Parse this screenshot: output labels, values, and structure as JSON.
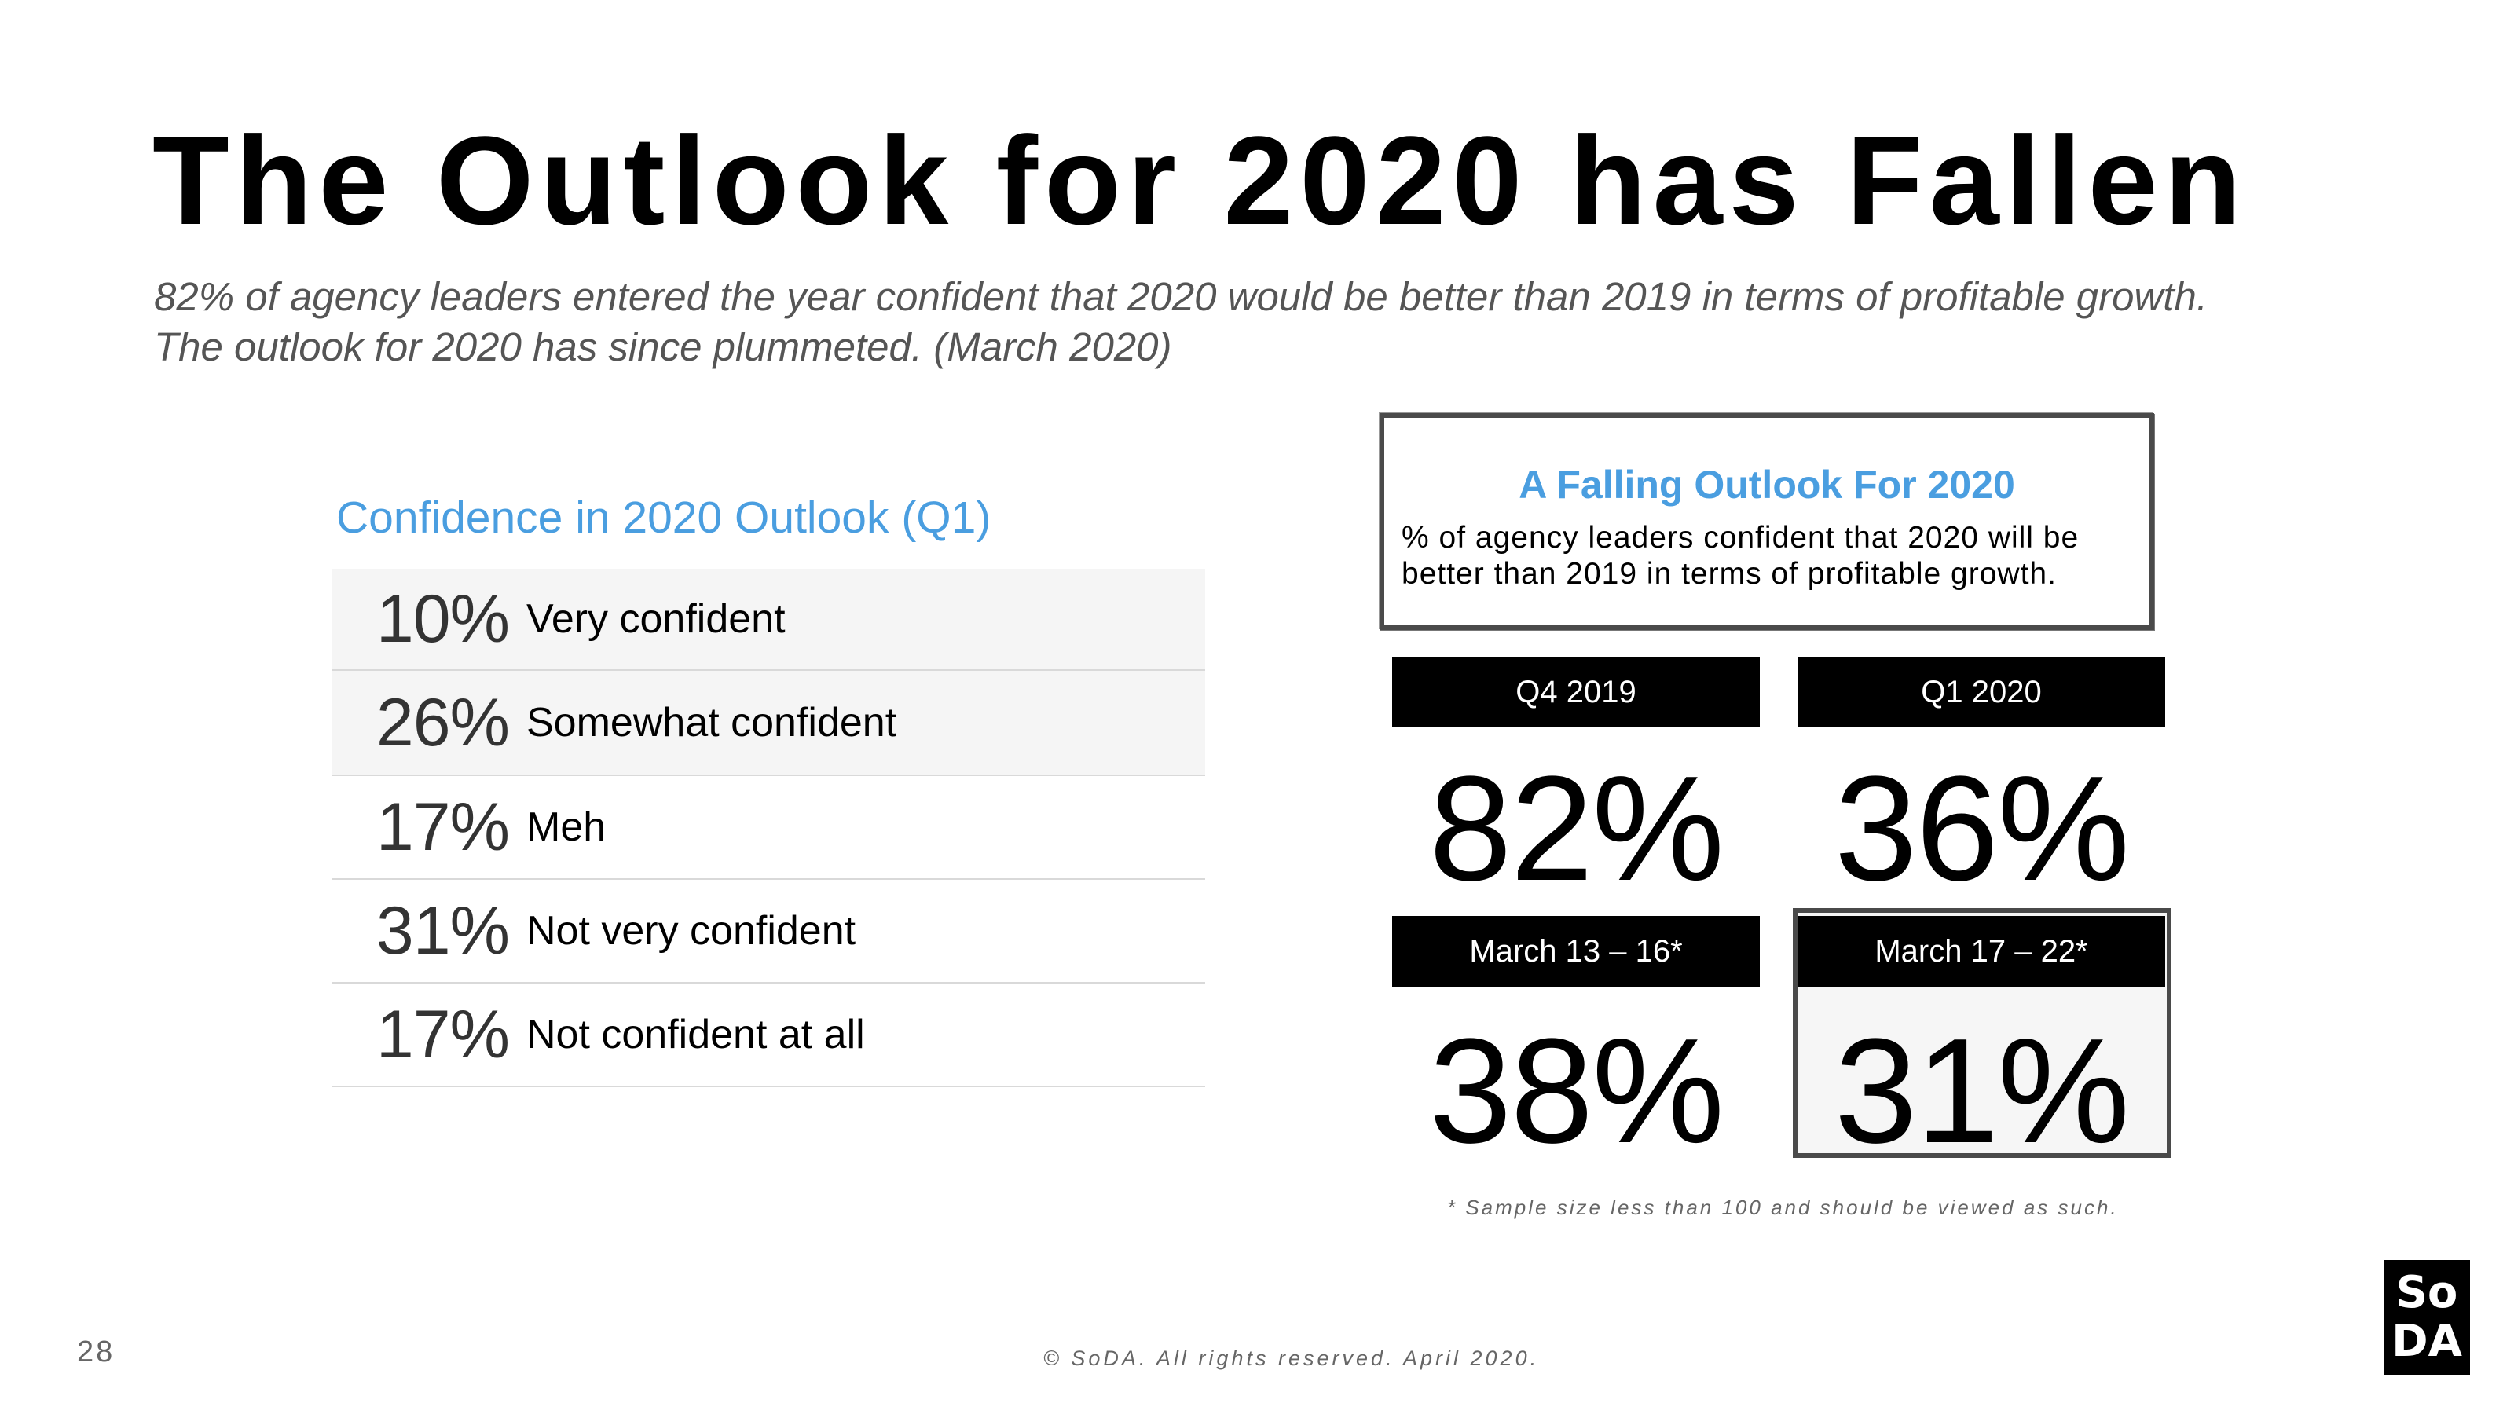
{
  "title": "The Outlook for 2020 has Fallen",
  "subtitle": {
    "line1": "82% of agency leaders entered the year confident that 2020 would be better than 2019 in terms of profitable growth.",
    "line2": "The outlook for 2020 has since plummeted. (March 2020)"
  },
  "confidence_table": {
    "heading": "Confidence in 2020 Outlook (Q1)",
    "rows": [
      {
        "pct": "10%",
        "label": "Very confident"
      },
      {
        "pct": "26%",
        "label": "Somewhat confident"
      },
      {
        "pct": "17%",
        "label": "Meh"
      },
      {
        "pct": "31%",
        "label": "Not very confident"
      },
      {
        "pct": "17%",
        "label": "Not confident at all"
      }
    ]
  },
  "callout": {
    "title": "A Falling Outlook For 2020",
    "text": "% of agency leaders confident that 2020 will  be better than 2019 in terms of profitable growth."
  },
  "periods": [
    {
      "label": "Q4 2019",
      "value": "82%"
    },
    {
      "label": "Q1 2020",
      "value": "36%"
    },
    {
      "label": "March 13 – 16*",
      "value": "38%"
    },
    {
      "label": "March 17 – 22*",
      "value": "31%"
    }
  ],
  "footnote": "* Sample size less than 100 and should be viewed as such.",
  "page_number": "28",
  "copyright": "© SoDA. All rights reserved. April 2020.",
  "logo": {
    "top": "So",
    "bottom": "DA"
  }
}
